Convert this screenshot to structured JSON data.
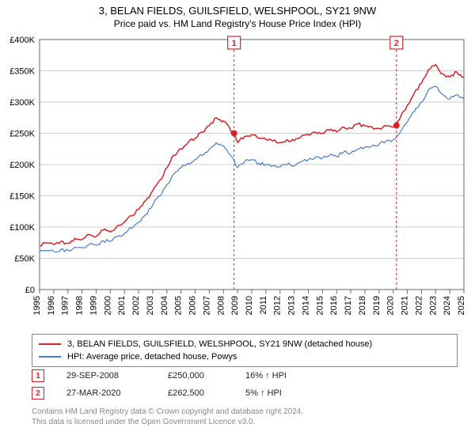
{
  "titles": {
    "line1": "3, BELAN FIELDS, GUILSFIELD, WELSHPOOL, SY21 9NW",
    "line2": "Price paid vs. HM Land Registry's House Price Index (HPI)"
  },
  "chart": {
    "type": "line",
    "background_color": "#ffffff",
    "plot_border_color": "#666666",
    "grid_color": "#cccccc",
    "tick_color": "#666666",
    "tick_font_size": 11,
    "y_axis": {
      "min": 0,
      "max": 400000,
      "tick_step": 50000,
      "tick_prefix": "£",
      "ticks": [
        "£0",
        "£50K",
        "£100K",
        "£150K",
        "£200K",
        "£250K",
        "£300K",
        "£350K",
        "£400K"
      ]
    },
    "x_axis": {
      "min": 1995,
      "max": 2025,
      "ticks": [
        1995,
        1996,
        1997,
        1998,
        1999,
        2000,
        2001,
        2002,
        2003,
        2004,
        2005,
        2006,
        2007,
        2008,
        2009,
        2010,
        2011,
        2012,
        2013,
        2014,
        2015,
        2016,
        2017,
        2018,
        2019,
        2020,
        2021,
        2022,
        2023,
        2024,
        2025
      ]
    },
    "series": [
      {
        "name": "subject",
        "label": "3, BELAN FIELDS, GUILSFIELD, WELSHPOOL, SY21 9NW (detached house)",
        "color": "#d8222a",
        "line_width": 1.5,
        "points": [
          [
            1995,
            70000
          ],
          [
            1995.5,
            75000
          ],
          [
            1996,
            72000
          ],
          [
            1996.5,
            77000
          ],
          [
            1997,
            74000
          ],
          [
            1997.5,
            82000
          ],
          [
            1998,
            80000
          ],
          [
            1998.5,
            88000
          ],
          [
            1999,
            85000
          ],
          [
            1999.5,
            95000
          ],
          [
            2000,
            92000
          ],
          [
            2000.5,
            102000
          ],
          [
            2001,
            108000
          ],
          [
            2001.5,
            118000
          ],
          [
            2002,
            128000
          ],
          [
            2002.5,
            142000
          ],
          [
            2003,
            158000
          ],
          [
            2003.5,
            175000
          ],
          [
            2004,
            195000
          ],
          [
            2004.5,
            215000
          ],
          [
            2005,
            225000
          ],
          [
            2005.5,
            235000
          ],
          [
            2006,
            242000
          ],
          [
            2006.5,
            252000
          ],
          [
            2007,
            262000
          ],
          [
            2007.5,
            275000
          ],
          [
            2008,
            270000
          ],
          [
            2008.5,
            255000
          ],
          [
            2008.75,
            250000
          ],
          [
            2009,
            235000
          ],
          [
            2009.5,
            245000
          ],
          [
            2010,
            248000
          ],
          [
            2010.5,
            242000
          ],
          [
            2011,
            240000
          ],
          [
            2011.5,
            238000
          ],
          [
            2012,
            235000
          ],
          [
            2012.5,
            240000
          ],
          [
            2013,
            238000
          ],
          [
            2013.5,
            245000
          ],
          [
            2014,
            248000
          ],
          [
            2014.5,
            252000
          ],
          [
            2015,
            250000
          ],
          [
            2015.5,
            255000
          ],
          [
            2016,
            252000
          ],
          [
            2016.5,
            260000
          ],
          [
            2017,
            258000
          ],
          [
            2017.5,
            265000
          ],
          [
            2018,
            262000
          ],
          [
            2018.5,
            260000
          ],
          [
            2019,
            258000
          ],
          [
            2019.5,
            262000
          ],
          [
            2020,
            260000
          ],
          [
            2020.23,
            262500
          ],
          [
            2020.5,
            275000
          ],
          [
            2021,
            295000
          ],
          [
            2021.5,
            315000
          ],
          [
            2022,
            330000
          ],
          [
            2022.5,
            352000
          ],
          [
            2023,
            360000
          ],
          [
            2023.5,
            345000
          ],
          [
            2024,
            340000
          ],
          [
            2024.5,
            348000
          ],
          [
            2025,
            340000
          ]
        ]
      },
      {
        "name": "hpi",
        "label": "HPI: Average price, detached house, Powys",
        "color": "#4a7bc8",
        "line_width": 1.2,
        "points": [
          [
            1995,
            60000
          ],
          [
            1995.5,
            62000
          ],
          [
            1996,
            61000
          ],
          [
            1996.5,
            64000
          ],
          [
            1997,
            63000
          ],
          [
            1997.5,
            68000
          ],
          [
            1998,
            67000
          ],
          [
            1998.5,
            72000
          ],
          [
            1999,
            71000
          ],
          [
            1999.5,
            78000
          ],
          [
            2000,
            77000
          ],
          [
            2000.5,
            85000
          ],
          [
            2001,
            90000
          ],
          [
            2001.5,
            98000
          ],
          [
            2002,
            108000
          ],
          [
            2002.5,
            120000
          ],
          [
            2003,
            135000
          ],
          [
            2003.5,
            150000
          ],
          [
            2004,
            168000
          ],
          [
            2004.5,
            185000
          ],
          [
            2005,
            195000
          ],
          [
            2005.5,
            202000
          ],
          [
            2006,
            208000
          ],
          [
            2006.5,
            215000
          ],
          [
            2007,
            225000
          ],
          [
            2007.5,
            235000
          ],
          [
            2008,
            230000
          ],
          [
            2008.5,
            215000
          ],
          [
            2009,
            195000
          ],
          [
            2009.5,
            205000
          ],
          [
            2010,
            208000
          ],
          [
            2010.5,
            202000
          ],
          [
            2011,
            200000
          ],
          [
            2011.5,
            198000
          ],
          [
            2012,
            196000
          ],
          [
            2012.5,
            200000
          ],
          [
            2013,
            198000
          ],
          [
            2013.5,
            205000
          ],
          [
            2014,
            208000
          ],
          [
            2014.5,
            212000
          ],
          [
            2015,
            210000
          ],
          [
            2015.5,
            215000
          ],
          [
            2016,
            213000
          ],
          [
            2016.5,
            220000
          ],
          [
            2017,
            218000
          ],
          [
            2017.5,
            225000
          ],
          [
            2018,
            228000
          ],
          [
            2018.5,
            230000
          ],
          [
            2019,
            232000
          ],
          [
            2019.5,
            238000
          ],
          [
            2020,
            240000
          ],
          [
            2020.5,
            252000
          ],
          [
            2021,
            268000
          ],
          [
            2021.5,
            285000
          ],
          [
            2022,
            300000
          ],
          [
            2022.5,
            320000
          ],
          [
            2023,
            325000
          ],
          [
            2023.5,
            312000
          ],
          [
            2024,
            305000
          ],
          [
            2024.5,
            312000
          ],
          [
            2025,
            305000
          ]
        ]
      }
    ],
    "event_markers": [
      {
        "idx": "1",
        "x": 2008.75,
        "y": 250000,
        "box_y": 395000,
        "line_color": "#d8222a",
        "box_border_color": "#d8222a",
        "box_fill": "#ffffff",
        "dot_color": "#d8222a",
        "dash": "3,3"
      },
      {
        "idx": "2",
        "x": 2020.23,
        "y": 262500,
        "box_y": 395000,
        "line_color": "#d8222a",
        "box_border_color": "#d8222a",
        "box_fill": "#ffffff",
        "dot_color": "#d8222a",
        "dash": "3,3"
      }
    ]
  },
  "legend": {
    "rows": [
      {
        "color": "#d8222a",
        "label": "3, BELAN FIELDS, GUILSFIELD, WELSHPOOL, SY21 9NW (detached house)"
      },
      {
        "color": "#4a7bc8",
        "label": "HPI: Average price, detached house, Powys"
      }
    ]
  },
  "marker_rows": [
    {
      "idx": "1",
      "border": "#d8222a",
      "text": "#d8222a",
      "date": "29-SEP-2008",
      "price": "£250,000",
      "hpi": "16% ↑ HPI"
    },
    {
      "idx": "2",
      "border": "#d8222a",
      "text": "#d8222a",
      "date": "27-MAR-2020",
      "price": "£262,500",
      "hpi": "5% ↑ HPI"
    }
  ],
  "footer": {
    "line1": "Contains HM Land Registry data © Crown copyright and database right 2024.",
    "line2": "This data is licensed under the Open Government Licence v3.0."
  }
}
